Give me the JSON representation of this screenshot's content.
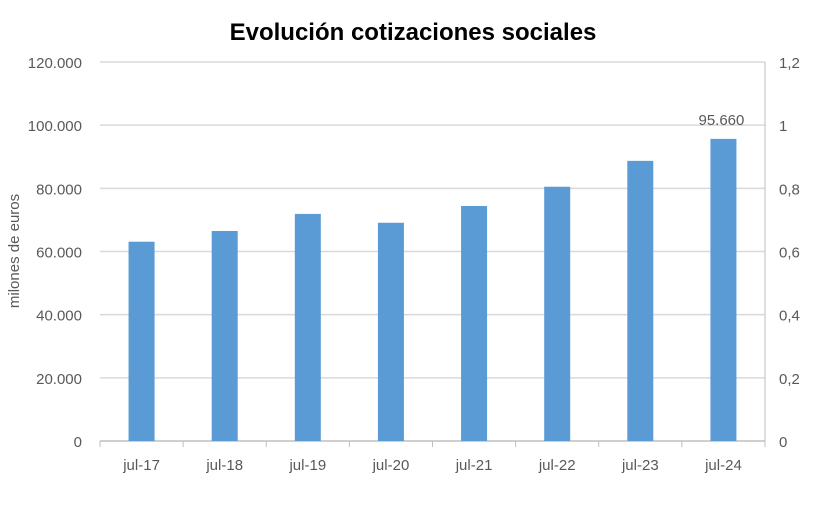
{
  "chart_data": {
    "type": "bar",
    "title": "Evolución cotizaciones sociales",
    "ylabel": "milones de euros",
    "xlabel": "",
    "categories": [
      "jul-17",
      "jul-18",
      "jul-19",
      "jul-20",
      "jul-21",
      "jul-22",
      "jul-23",
      "jul-24"
    ],
    "values": [
      63100,
      66500,
      71900,
      69100,
      74400,
      80500,
      88700,
      95660
    ],
    "ylim": [
      0,
      120000
    ],
    "yticks": [
      "0",
      "20.000",
      "40.000",
      "60.000",
      "80.000",
      "100.000",
      "120.000"
    ],
    "y2lim": [
      0,
      1.2
    ],
    "y2ticks": [
      "0",
      "0,2",
      "0,4",
      "0,6",
      "0,8",
      "1",
      "1,2"
    ],
    "data_labels": [
      {
        "category": "jul-24",
        "text": "95.660"
      }
    ],
    "grid": true,
    "legend": "none",
    "bar_color": "#5b9bd5"
  }
}
